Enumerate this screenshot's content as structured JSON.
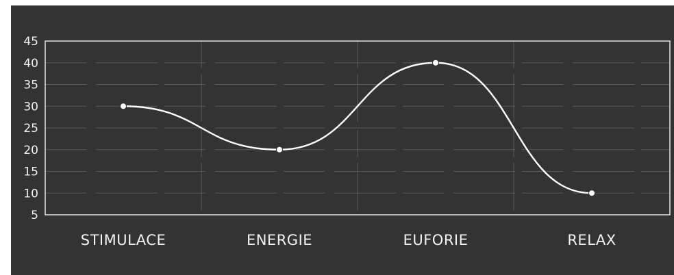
{
  "chart_data": {
    "type": "line",
    "categories": [
      "STIMULACE",
      "ENERGIE",
      "EUFORIE",
      "RELAX"
    ],
    "series": [
      {
        "values": [
          30,
          20,
          40,
          10
        ]
      }
    ],
    "y_ticks": [
      "5",
      "10",
      "15",
      "20",
      "25",
      "30",
      "35",
      "40",
      "45"
    ],
    "ylim": [
      5,
      45
    ],
    "grid": true,
    "smooth": true,
    "colors": {
      "background": "#333333",
      "line": "#ffffff",
      "grid": "#5a5a5a",
      "text": "#f2f2f2"
    }
  }
}
